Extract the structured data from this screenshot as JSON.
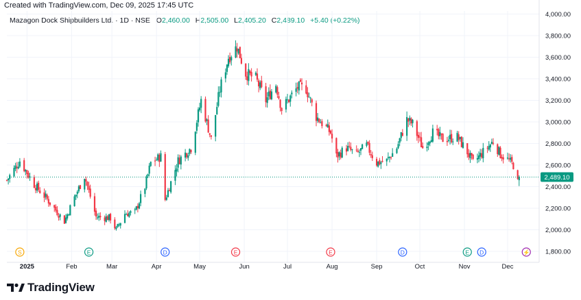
{
  "header": {
    "created_text": "Created with TradingView.com, Dec 09, 2025 17:45 UTC"
  },
  "legend": {
    "symbol": "Mazagon Dock Shipbuilders Ltd. · 1D · NSE",
    "open_label": "O",
    "open": "2,460.00",
    "high_label": "H",
    "high": "2,505.00",
    "low_label": "L",
    "low": "2,405.20",
    "close_label": "C",
    "close": "2,489.10",
    "change": "+5.40 (+0.22%)"
  },
  "brand": {
    "name": "TradingView",
    "icon": "tradingview-logo-icon"
  },
  "colors": {
    "up": "#089981",
    "down": "#f23645",
    "grid": "#f0f3fa",
    "price_line": "#089981",
    "axis_text": "#131722"
  },
  "chart_data": {
    "type": "candlestick",
    "y_axis_ticks": [
      "4,000.00",
      "3,800.00",
      "3,600.00",
      "3,400.00",
      "3,200.00",
      "3,000.00",
      "2,800.00",
      "2,600.00",
      "2,400.00",
      "2,200.00",
      "2,000.00",
      "1,800.00"
    ],
    "ylim": [
      1750,
      4000
    ],
    "x_axis_labels": [
      {
        "label": "2025",
        "date": "2025-01-01",
        "bold": true
      },
      {
        "label": "Feb",
        "date": "2025-02-01"
      },
      {
        "label": "Mar",
        "date": "2025-03-01"
      },
      {
        "label": "Apr",
        "date": "2025-04-01"
      },
      {
        "label": "May",
        "date": "2025-05-01"
      },
      {
        "label": "Jun",
        "date": "2025-06-01"
      },
      {
        "label": "Jul",
        "date": "2025-07-01"
      },
      {
        "label": "Aug",
        "date": "2025-08-01"
      },
      {
        "label": "Sep",
        "date": "2025-09-01"
      },
      {
        "label": "Oct",
        "date": "2025-10-01"
      },
      {
        "label": "Nov",
        "date": "2025-11-01"
      },
      {
        "label": "Dec",
        "date": "2025-12-01"
      }
    ],
    "last_price": {
      "value": 2489.1,
      "label": "2,489.10"
    },
    "events": [
      {
        "letter": "S",
        "date": "2024-12-27",
        "color": "#f7a600"
      },
      {
        "letter": "E",
        "date": "2025-02-13",
        "color": "#089981"
      },
      {
        "letter": "D",
        "date": "2025-04-07",
        "color": "#2962ff"
      },
      {
        "letter": "E",
        "date": "2025-05-26",
        "color": "#f23645"
      },
      {
        "letter": "E",
        "date": "2025-07-31",
        "color": "#f23645"
      },
      {
        "letter": "D",
        "date": "2025-09-19",
        "color": "#2962ff"
      },
      {
        "letter": "E",
        "date": "2025-11-03",
        "color": "#089981"
      },
      {
        "letter": "D",
        "date": "2025-11-13",
        "color": "#2962ff"
      },
      {
        "letter": "⚡",
        "date": "2025-12-14",
        "color": "#9c27b0"
      }
    ],
    "price_path": [
      {
        "date": "2024-12-18",
        "close": 2460
      },
      {
        "date": "2024-12-27",
        "close": 2640
      },
      {
        "date": "2025-01-06",
        "close": 2420
      },
      {
        "date": "2025-01-14",
        "close": 2300
      },
      {
        "date": "2025-01-27",
        "close": 2080
      },
      {
        "date": "2025-02-03",
        "close": 2300
      },
      {
        "date": "2025-02-10",
        "close": 2500
      },
      {
        "date": "2025-02-18",
        "close": 2120
      },
      {
        "date": "2025-02-28",
        "close": 2110
      },
      {
        "date": "2025-03-04",
        "close": 2000
      },
      {
        "date": "2025-03-10",
        "close": 2150
      },
      {
        "date": "2025-03-17",
        "close": 2160
      },
      {
        "date": "2025-03-24",
        "close": 2400
      },
      {
        "date": "2025-03-28",
        "close": 2620
      },
      {
        "date": "2025-04-04",
        "close": 2680
      },
      {
        "date": "2025-04-07",
        "close": 2280
      },
      {
        "date": "2025-04-11",
        "close": 2440
      },
      {
        "date": "2025-04-16",
        "close": 2640
      },
      {
        "date": "2025-04-25",
        "close": 2760
      },
      {
        "date": "2025-05-02",
        "close": 3200
      },
      {
        "date": "2025-05-09",
        "close": 2840
      },
      {
        "date": "2025-05-15",
        "close": 3300
      },
      {
        "date": "2025-05-21",
        "close": 3600
      },
      {
        "date": "2025-05-27",
        "close": 3700
      },
      {
        "date": "2025-06-02",
        "close": 3450
      },
      {
        "date": "2025-06-09",
        "close": 3400
      },
      {
        "date": "2025-06-16",
        "close": 3200
      },
      {
        "date": "2025-06-23",
        "close": 3350
      },
      {
        "date": "2025-06-27",
        "close": 3120
      },
      {
        "date": "2025-07-08",
        "close": 3320
      },
      {
        "date": "2025-07-14",
        "close": 3310
      },
      {
        "date": "2025-07-21",
        "close": 3050
      },
      {
        "date": "2025-07-31",
        "close": 2900
      },
      {
        "date": "2025-08-04",
        "close": 2680
      },
      {
        "date": "2025-08-11",
        "close": 2760
      },
      {
        "date": "2025-08-18",
        "close": 2700
      },
      {
        "date": "2025-08-25",
        "close": 2780
      },
      {
        "date": "2025-09-01",
        "close": 2620
      },
      {
        "date": "2025-09-08",
        "close": 2640
      },
      {
        "date": "2025-09-15",
        "close": 2760
      },
      {
        "date": "2025-09-22",
        "close": 3020
      },
      {
        "date": "2025-09-26",
        "close": 2980
      },
      {
        "date": "2025-10-03",
        "close": 2760
      },
      {
        "date": "2025-10-10",
        "close": 2900
      },
      {
        "date": "2025-10-17",
        "close": 2840
      },
      {
        "date": "2025-10-27",
        "close": 2860
      },
      {
        "date": "2025-11-03",
        "close": 2720
      },
      {
        "date": "2025-11-07",
        "close": 2620
      },
      {
        "date": "2025-11-14",
        "close": 2720
      },
      {
        "date": "2025-11-21",
        "close": 2820
      },
      {
        "date": "2025-11-26",
        "close": 2700
      },
      {
        "date": "2025-12-02",
        "close": 2640
      },
      {
        "date": "2025-12-05",
        "close": 2600
      },
      {
        "date": "2025-12-08",
        "close": 2440
      },
      {
        "date": "2025-12-09",
        "close": 2489.1
      }
    ]
  }
}
